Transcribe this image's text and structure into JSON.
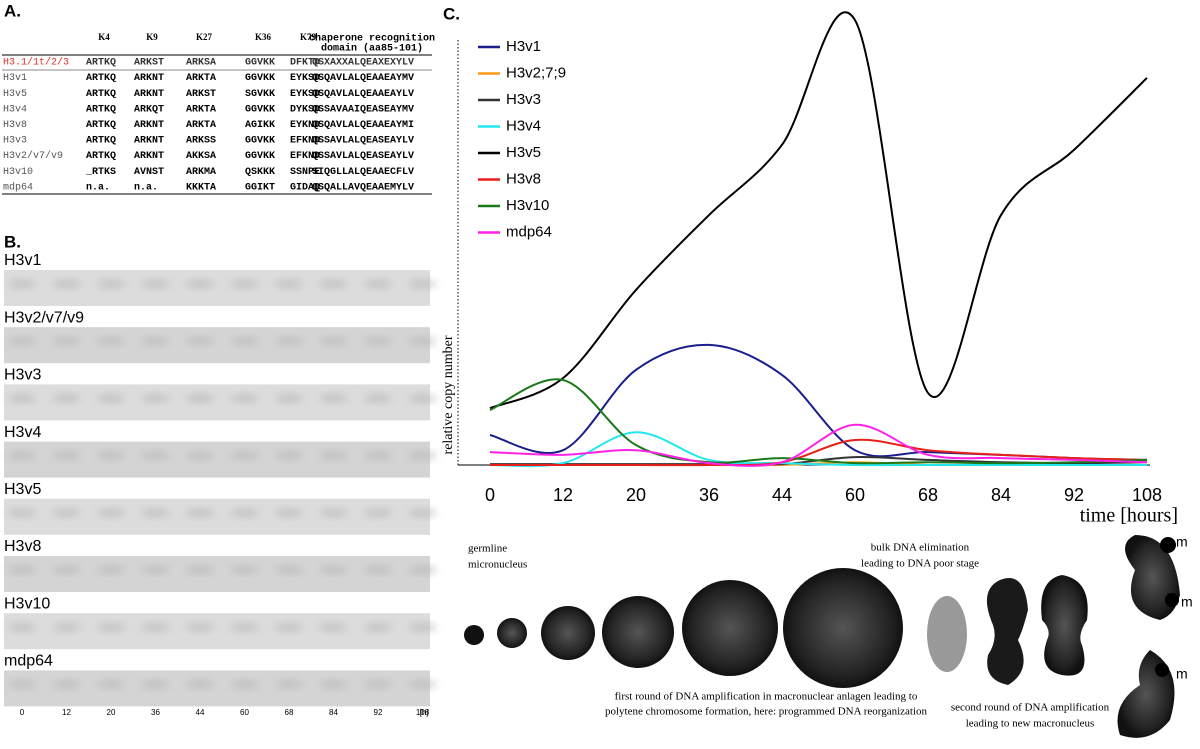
{
  "panel_a": {
    "label": "A.",
    "header": [
      "K4",
      "K9",
      "K27",
      "K36",
      "K79",
      "chaperone recognition",
      "domain (aa85-101)"
    ],
    "rows": [
      [
        "H3.1/1t/2/3",
        "ARTKQ",
        "ARKST",
        "ARKSA",
        "GGVKK",
        "DFKTD",
        "QSXAXXALQEAXEXYLV"
      ],
      [
        "H3v1",
        "ARTKQ",
        "ARKNT",
        "ARKTA",
        "GGVKK",
        "EYKSD",
        "QSQAVLALQEAAEAYMV"
      ],
      [
        "H3v5",
        "ARTKQ",
        "ARKNT",
        "ARKST",
        "SGVKK",
        "EYKSD",
        "QSQAVLALQEAAEAYLV"
      ],
      [
        "H3v4",
        "ARTKQ",
        "ARKQT",
        "ARKTA",
        "GGVKK",
        "DYKSD",
        "QSSAVAAIQEASEAYMV"
      ],
      [
        "H3v8",
        "ARTKQ",
        "ARKNT",
        "ARKTA",
        "AGIKK",
        "EYKND",
        "QSQAVLALQEAAEAYMI"
      ],
      [
        "H3v3",
        "ARTKQ",
        "ARKNT",
        "ARKSS",
        "GGVKK",
        "EFKND",
        "QSSAVLALQEASEAYLV"
      ],
      [
        "H3v2/v7/v9",
        "ARTKQ",
        "ARKNT",
        "AKKSA",
        "GGVKK",
        "EFKND",
        "QSSAVLALQEASEAYLV"
      ],
      [
        "H3v10",
        "_RTKS",
        "AVNST",
        "ARKMA",
        "QSKKK",
        "SSNPE",
        "SIQGLLALQEAAECFLV"
      ],
      [
        "mdp64",
        "n.a.",
        "n.a.",
        "KKKTA",
        "GGIKT",
        "GIDAQ",
        "QSQALLAVQEAAEMYLV"
      ]
    ]
  },
  "panel_b": {
    "label": "B.",
    "gels": [
      "H3v1",
      "H3v2/v7/v9",
      "H3v3",
      "H3v4",
      "H3v5",
      "H3v8",
      "H3v10",
      "mdp64"
    ],
    "lanes": [
      "0",
      "12",
      "20",
      "36",
      "44",
      "60",
      "68",
      "84",
      "92",
      "108"
    ],
    "unit": "[h]"
  },
  "chart_data": {
    "type": "line",
    "label": "C.",
    "x_label": "time [hours]",
    "y_label": "relative copy number",
    "categories": [
      "0",
      "12",
      "20",
      "36",
      "44",
      "60",
      "68",
      "84",
      "92",
      "108"
    ],
    "ylim": [
      0,
      100
    ],
    "series": [
      {
        "name": "H3v1",
        "color": "#1a1f8c",
        "values": [
          6.5,
          3.2,
          20.6,
          26,
          19.5,
          3.2,
          2.8,
          2.2,
          1.5,
          1.1
        ]
      },
      {
        "name": "H3v2;7;9",
        "color": "#ff9a1a",
        "values": [
          0,
          0,
          0,
          0,
          0,
          0.6,
          0,
          0,
          0,
          0
        ]
      },
      {
        "name": "H3v3",
        "color": "#333333",
        "values": [
          0.2,
          0.2,
          0.2,
          0.2,
          0.2,
          1.7,
          1.1,
          0.6,
          0.4,
          0.6
        ]
      },
      {
        "name": "H3v4",
        "color": "#22e6f0",
        "values": [
          0,
          0.4,
          7.1,
          1.1,
          0.4,
          0,
          0,
          0,
          0,
          0
        ]
      },
      {
        "name": "H3v5",
        "color": "#000000",
        "values": [
          12.3,
          18.8,
          37.9,
          54.1,
          69.3,
          96.3,
          15.6,
          54.1,
          68.2,
          83.8
        ]
      },
      {
        "name": "H3v8",
        "color": "#e8201a",
        "values": [
          0,
          0,
          0,
          0,
          0.6,
          5.4,
          3.2,
          2.2,
          1.5,
          1.1
        ]
      },
      {
        "name": "H3v10",
        "color": "#1a7a1a",
        "values": [
          11.9,
          18.4,
          4.3,
          0.6,
          1.5,
          0.4,
          0.6,
          0.4,
          0.6,
          1.1
        ]
      },
      {
        "name": "mdp64",
        "color": "#ff22e6",
        "values": [
          2.8,
          2.2,
          3.2,
          0.4,
          0.6,
          8.7,
          2.2,
          1.5,
          1.1,
          0.6
        ]
      }
    ]
  },
  "panel_c_images": {
    "annotations": [
      "germline",
      "micronucleus",
      "bulk DNA elimination",
      "leading to DNA poor stage",
      "first round of DNA amplification in macronuclear anlagen leading to",
      "polytene chromosome formation, here: programmed DNA reorganization",
      "second round of DNA amplification",
      "leading to new macronucleus"
    ],
    "markers": [
      "m",
      "m",
      "m"
    ]
  }
}
